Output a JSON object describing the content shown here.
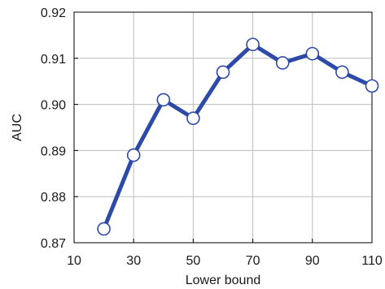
{
  "chart_data": {
    "type": "line",
    "title": "",
    "xlabel": "Lower bound",
    "ylabel": "AUC",
    "xlim": [
      10,
      110
    ],
    "ylim": [
      0.87,
      0.92
    ],
    "x_ticks": [
      10,
      30,
      50,
      70,
      90,
      110
    ],
    "y_ticks": [
      0.87,
      0.88,
      0.89,
      0.9,
      0.91,
      0.92
    ],
    "x_tick_labels": [
      "10",
      "30",
      "50",
      "70",
      "90",
      "110"
    ],
    "y_tick_labels": [
      "0.87",
      "0.88",
      "0.89",
      "0.90",
      "0.91",
      "0.92"
    ],
    "grid": true,
    "series": [
      {
        "x": [
          20,
          30,
          40,
          50,
          60,
          70,
          80,
          90,
          100,
          110
        ],
        "y": [
          0.873,
          0.889,
          0.901,
          0.897,
          0.907,
          0.913,
          0.909,
          0.911,
          0.907,
          0.904
        ],
        "color": "#2e4aa8",
        "marker": "open-circle"
      }
    ]
  }
}
